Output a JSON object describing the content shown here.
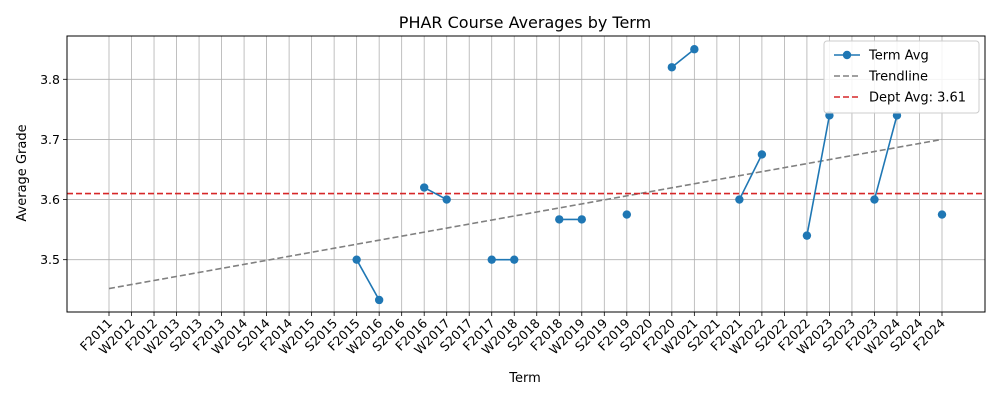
{
  "chart_data": {
    "type": "line",
    "title": "PHAR Course Averages by Term",
    "xlabel": "Term",
    "ylabel": "Average Grade",
    "ylim": [
      3.413,
      3.872
    ],
    "yticks": [
      3.5,
      3.6,
      3.7,
      3.8
    ],
    "grid": true,
    "legend_position": "top-right",
    "categories": [
      "F2011",
      "W2012",
      "F2012",
      "W2013",
      "S2013",
      "F2013",
      "W2014",
      "S2014",
      "F2014",
      "W2015",
      "S2015",
      "F2015",
      "W2016",
      "S2016",
      "F2016",
      "W2017",
      "S2017",
      "F2017",
      "W2018",
      "S2018",
      "F2018",
      "W2019",
      "S2019",
      "F2019",
      "S2020",
      "F2020",
      "W2021",
      "S2021",
      "F2021",
      "W2022",
      "S2022",
      "F2022",
      "W2023",
      "S2023",
      "F2023",
      "W2024",
      "S2024",
      "F2024"
    ],
    "series": [
      {
        "name": "Term Avg",
        "style": "line-marker",
        "color": "#1f77b4",
        "values": [
          null,
          null,
          null,
          null,
          null,
          null,
          null,
          null,
          null,
          null,
          null,
          3.5,
          3.433,
          null,
          3.62,
          3.6,
          null,
          3.5,
          3.5,
          null,
          3.567,
          3.567,
          null,
          3.575,
          null,
          3.82,
          3.85,
          null,
          3.6,
          3.675,
          null,
          3.54,
          3.74,
          null,
          3.6,
          3.74,
          null,
          3.575
        ]
      },
      {
        "name": "Trendline",
        "style": "dashed",
        "color": "#808080",
        "from": [
          "F2011",
          3.452
        ],
        "to": [
          "F2024",
          3.7
        ]
      },
      {
        "name": "Dept Avg: 3.61",
        "style": "dashed-horizontal",
        "color": "#d62728",
        "value": 3.61
      }
    ]
  }
}
